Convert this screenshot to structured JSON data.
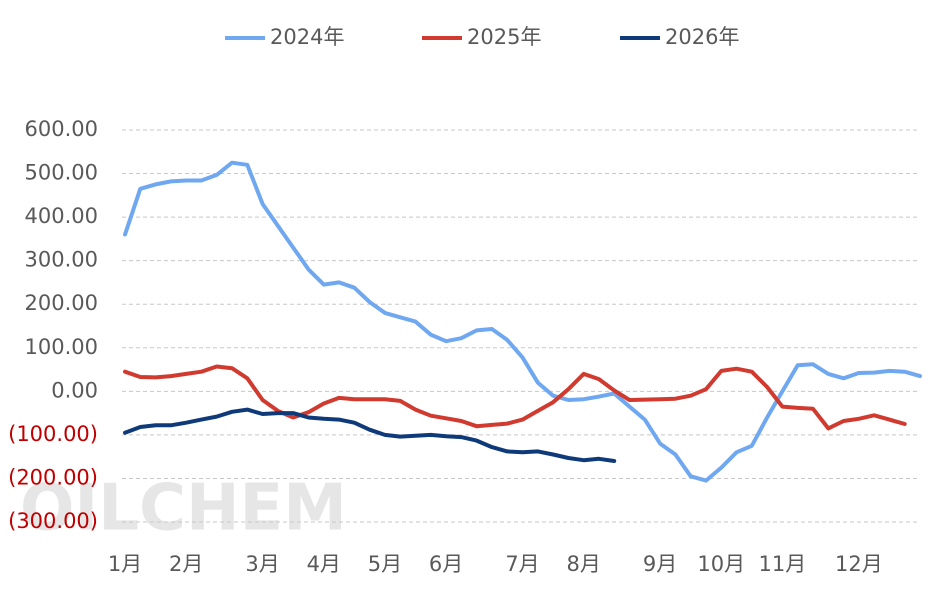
{
  "chart_data": {
    "type": "line",
    "watermark": "OILCHEM",
    "categories": [
      "1月",
      null,
      null,
      null,
      "2月",
      null,
      null,
      null,
      null,
      "3月",
      null,
      null,
      null,
      "4月",
      null,
      null,
      null,
      "5月",
      null,
      null,
      null,
      "6月",
      null,
      null,
      null,
      null,
      "7月",
      null,
      null,
      null,
      "8月",
      null,
      null,
      null,
      null,
      "9月",
      null,
      null,
      null,
      "10月",
      null,
      null,
      null,
      "11月",
      null,
      null,
      null,
      null,
      "12月",
      null,
      null,
      null,
      null
    ],
    "series": [
      {
        "name": "2024年",
        "color": "#6fa8f0",
        "values": [
          360,
          465,
          475,
          482,
          484,
          484,
          497,
          525,
          520,
          430,
          380,
          330,
          280,
          245,
          250,
          238,
          205,
          180,
          170,
          160,
          130,
          115,
          122,
          140,
          143,
          118,
          78,
          20,
          -10,
          -20,
          -18,
          -12,
          -5,
          -35,
          -65,
          -120,
          -145,
          -195,
          -205,
          -175,
          -140,
          -125,
          -60,
          0,
          60,
          62,
          40,
          30,
          42,
          43,
          47,
          45,
          35
        ]
      },
      {
        "name": "2025年",
        "color": "#d03a2f",
        "values": [
          45,
          33,
          32,
          35,
          40,
          45,
          57,
          53,
          30,
          -20,
          -45,
          -60,
          -48,
          -28,
          -15,
          -18,
          -18,
          -18,
          -22,
          -42,
          -56,
          -62,
          -68,
          -80,
          -77,
          -74,
          -65,
          -45,
          -25,
          5,
          40,
          28,
          2,
          -20,
          -19,
          -18,
          -17,
          -10,
          5,
          47,
          52,
          45,
          10,
          -35,
          -38,
          -40,
          -85,
          -68,
          -63,
          -55,
          -65,
          -75,
          null
        ]
      },
      {
        "name": "2026年",
        "color": "#0f3a7a",
        "values": [
          -95,
          -82,
          -78,
          -78,
          -72,
          -65,
          -58,
          -47,
          -42,
          -52,
          -50,
          -50,
          -60,
          -63,
          -65,
          -72,
          -88,
          -100,
          -104,
          -102,
          -100,
          -103,
          -105,
          -113,
          -128,
          -138,
          -140,
          -138,
          -145,
          -153,
          -158,
          -155,
          -160,
          null,
          null,
          null,
          null,
          null,
          null,
          null,
          null,
          null,
          null,
          null,
          null,
          null,
          null,
          null,
          null,
          null,
          null,
          null,
          null
        ]
      }
    ],
    "ylim": [
      -300,
      600
    ],
    "yticks": [
      {
        "value": -300,
        "label": "(300.00)"
      },
      {
        "value": -200,
        "label": "(200.00)"
      },
      {
        "value": -100,
        "label": "(100.00)"
      },
      {
        "value": 0,
        "label": "0.00"
      },
      {
        "value": 100,
        "label": "100.00"
      },
      {
        "value": 200,
        "label": "200.00"
      },
      {
        "value": 300,
        "label": "300.00"
      },
      {
        "value": 400,
        "label": "400.00"
      },
      {
        "value": 500,
        "label": "500.00"
      },
      {
        "value": 600,
        "label": "600.00"
      }
    ],
    "negative_tick_color": "#c00000",
    "grid": true,
    "legend": "top"
  }
}
